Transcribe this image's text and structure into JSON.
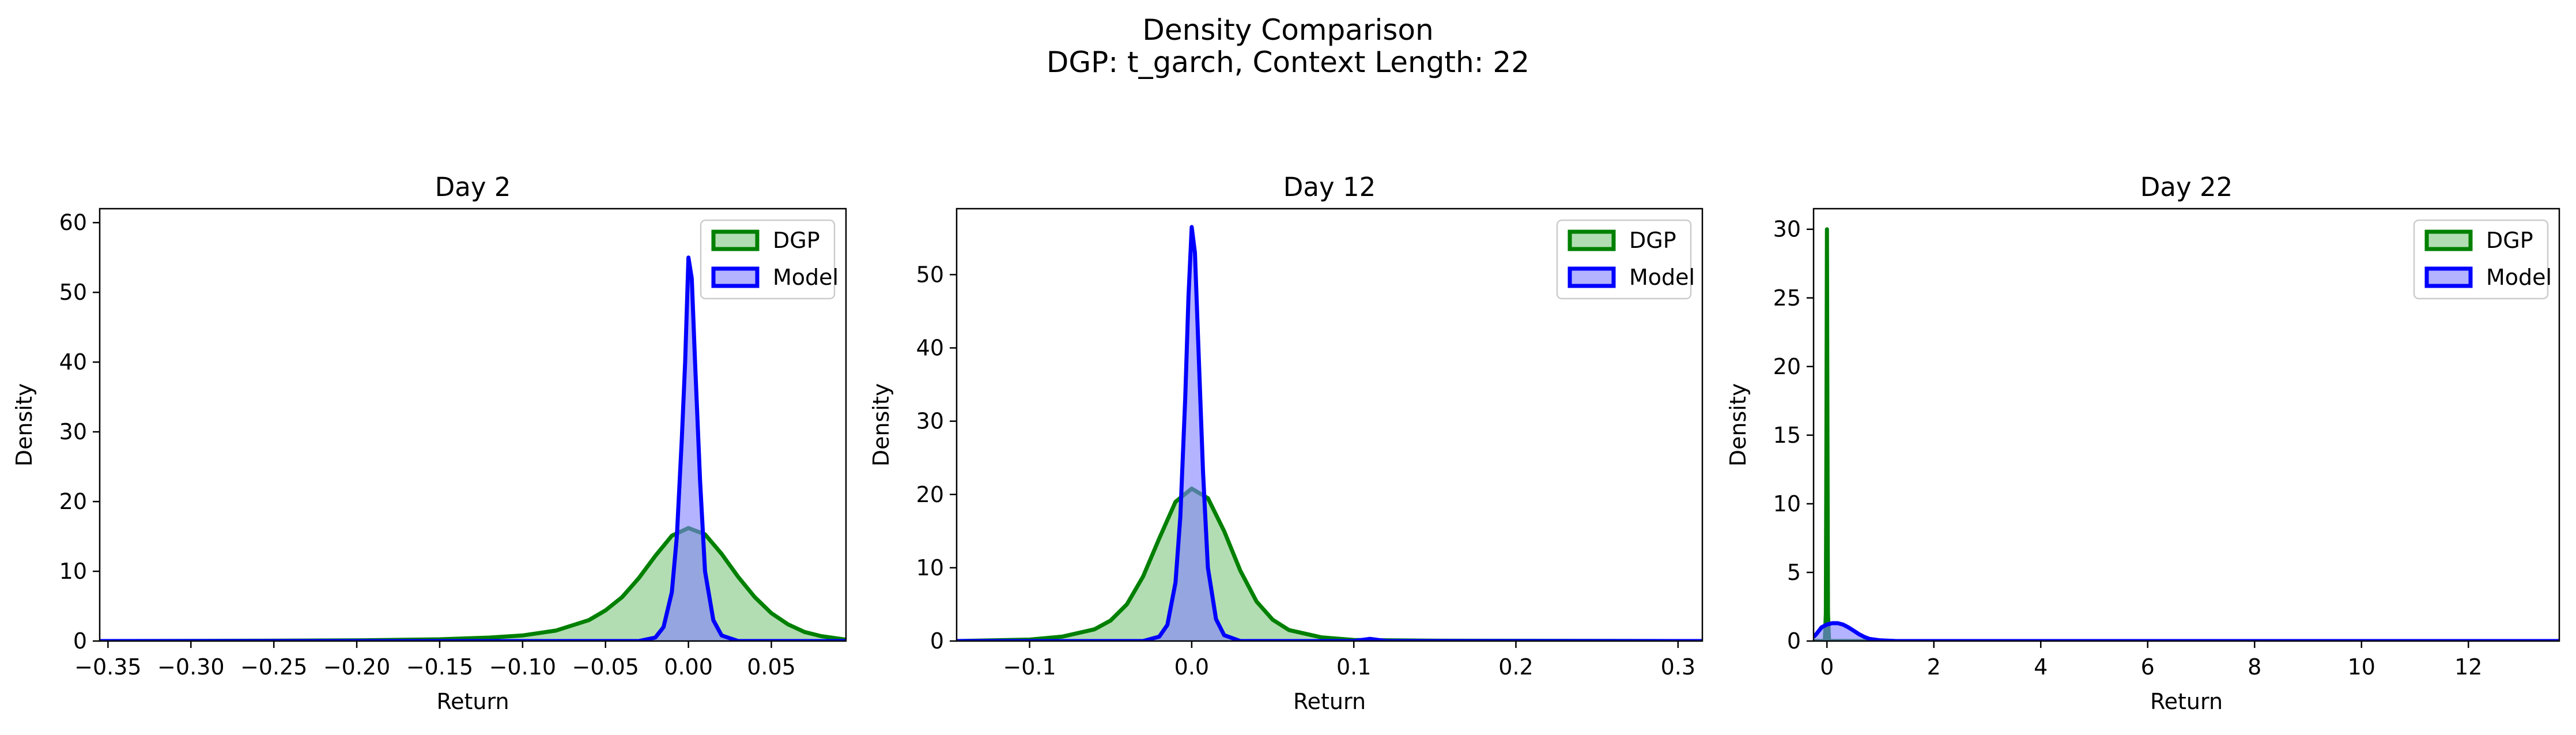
{
  "figure": {
    "title": "Density Comparison",
    "subtitle": "DGP: t_garch, Context Length: 22"
  },
  "chart_data": [
    {
      "type": "area",
      "title": "Day 2",
      "xlabel": "Return",
      "ylabel": "Density",
      "xlim": [
        -0.355,
        0.095
      ],
      "ylim": [
        0,
        62
      ],
      "xticks": [
        -0.35,
        -0.3,
        -0.25,
        -0.2,
        -0.15,
        -0.1,
        -0.05,
        0.0,
        0.05
      ],
      "xtick_labels": [
        "−0.35",
        "−0.30",
        "−0.25",
        "−0.20",
        "−0.15",
        "−0.10",
        "−0.05",
        "0.00",
        "0.05"
      ],
      "yticks": [
        0,
        10,
        20,
        30,
        40,
        50,
        60
      ],
      "ytick_labels": [
        "0",
        "10",
        "20",
        "30",
        "40",
        "50",
        "60"
      ],
      "legend": "top-right",
      "series": [
        {
          "name": "DGP",
          "color": "#008000",
          "fill": "#7fc67f",
          "x": [
            -0.355,
            -0.3,
            -0.25,
            -0.2,
            -0.15,
            -0.12,
            -0.1,
            -0.08,
            -0.06,
            -0.05,
            -0.04,
            -0.03,
            -0.02,
            -0.01,
            0.0,
            0.01,
            0.02,
            0.03,
            0.04,
            0.05,
            0.06,
            0.07,
            0.08,
            0.095
          ],
          "y": [
            0,
            0.02,
            0.05,
            0.1,
            0.25,
            0.5,
            0.8,
            1.5,
            3.0,
            4.4,
            6.3,
            9.0,
            12.2,
            15.1,
            16.2,
            15.3,
            12.5,
            9.2,
            6.3,
            4.0,
            2.4,
            1.3,
            0.7,
            0.2
          ]
        },
        {
          "name": "Model",
          "color": "#0000ff",
          "fill": "#8080ff",
          "x": [
            -0.355,
            -0.03,
            -0.02,
            -0.015,
            -0.01,
            -0.007,
            -0.004,
            -0.002,
            0.0,
            0.002,
            0.004,
            0.007,
            0.01,
            0.015,
            0.02,
            0.03,
            0.095
          ],
          "y": [
            0,
            0,
            0.5,
            2.0,
            7.0,
            15.0,
            29.0,
            40.0,
            55.0,
            52.0,
            40.0,
            23.0,
            10.0,
            3.0,
            0.8,
            0,
            0
          ]
        }
      ]
    },
    {
      "type": "area",
      "title": "Day 12",
      "xlabel": "Return",
      "ylabel": "Density",
      "xlim": [
        -0.145,
        0.315
      ],
      "ylim": [
        0,
        59
      ],
      "xticks": [
        -0.1,
        0.0,
        0.1,
        0.2,
        0.3
      ],
      "xtick_labels": [
        "−0.1",
        "0.0",
        "0.1",
        "0.2",
        "0.3"
      ],
      "yticks": [
        0,
        10,
        20,
        30,
        40,
        50
      ],
      "ytick_labels": [
        "0",
        "10",
        "20",
        "30",
        "40",
        "50"
      ],
      "legend": "top-right",
      "series": [
        {
          "name": "DGP",
          "color": "#008000",
          "fill": "#7fc67f",
          "x": [
            -0.145,
            -0.1,
            -0.08,
            -0.06,
            -0.05,
            -0.04,
            -0.03,
            -0.02,
            -0.01,
            0.0,
            0.01,
            0.02,
            0.03,
            0.04,
            0.05,
            0.06,
            0.08,
            0.1,
            0.15,
            0.315
          ],
          "y": [
            0,
            0.2,
            0.6,
            1.6,
            2.8,
            5.0,
            8.8,
            14.0,
            19.0,
            20.8,
            19.5,
            15.0,
            9.6,
            5.4,
            2.9,
            1.5,
            0.5,
            0.15,
            0.05,
            0
          ]
        },
        {
          "name": "Model",
          "color": "#0000ff",
          "fill": "#8080ff",
          "x": [
            -0.145,
            -0.03,
            -0.02,
            -0.015,
            -0.01,
            -0.007,
            -0.004,
            -0.002,
            0.0,
            0.002,
            0.004,
            0.007,
            0.01,
            0.015,
            0.02,
            0.03,
            0.1,
            0.11,
            0.12,
            0.315
          ],
          "y": [
            0,
            0,
            0.6,
            2.2,
            8.0,
            17.0,
            33.0,
            47.0,
            56.5,
            53.0,
            41.0,
            23.0,
            10.0,
            3.0,
            0.8,
            0,
            0,
            0.3,
            0,
            0
          ]
        }
      ]
    },
    {
      "type": "area",
      "title": "Day 22",
      "xlabel": "Return",
      "ylabel": "Density",
      "xlim": [
        -0.25,
        13.7
      ],
      "ylim": [
        0,
        31.5
      ],
      "xticks": [
        0,
        2,
        4,
        6,
        8,
        10,
        12
      ],
      "xtick_labels": [
        "0",
        "2",
        "4",
        "6",
        "8",
        "10",
        "12"
      ],
      "yticks": [
        0,
        5,
        10,
        15,
        20,
        25,
        30
      ],
      "ytick_labels": [
        "0",
        "5",
        "10",
        "15",
        "20",
        "25",
        "30"
      ],
      "legend": "top-right",
      "series": [
        {
          "name": "DGP",
          "color": "#008000",
          "fill": "#7fc67f",
          "x": [
            -0.25,
            -0.04,
            -0.02,
            -0.01,
            0.0,
            0.01,
            0.02,
            0.04,
            13.7
          ],
          "y": [
            0,
            0,
            2.0,
            15.0,
            30.0,
            15.0,
            2.0,
            0,
            0
          ]
        },
        {
          "name": "Model",
          "color": "#0000ff",
          "fill": "#8080ff",
          "x": [
            -0.25,
            -0.2,
            -0.1,
            0.0,
            0.1,
            0.2,
            0.3,
            0.4,
            0.5,
            0.6,
            0.7,
            0.8,
            1.0,
            1.3,
            13.7
          ],
          "y": [
            0.3,
            0.5,
            1.0,
            1.2,
            1.3,
            1.3,
            1.2,
            1.0,
            0.75,
            0.5,
            0.3,
            0.15,
            0.05,
            0,
            0
          ]
        }
      ]
    }
  ]
}
